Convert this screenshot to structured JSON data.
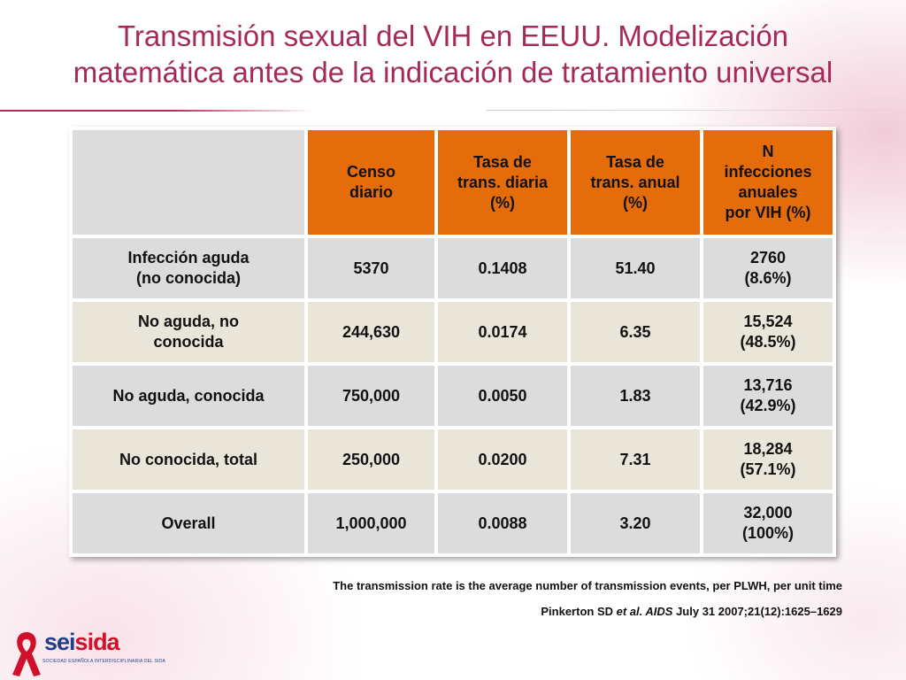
{
  "title": {
    "line1": "Transmisión sexual del VIH en EEUU. Modelización",
    "line2": "matemática antes de la indicación de tratamiento universal"
  },
  "table": {
    "headers": [
      "",
      [
        "Censo",
        "diario"
      ],
      [
        "Tasa de",
        "trans. diaria",
        "(%)"
      ],
      [
        "Tasa de",
        "trans. anual",
        "(%)"
      ],
      [
        "N",
        "infecciones",
        "anuales",
        "por VIH (%)"
      ]
    ],
    "rows": [
      {
        "label": [
          "Infección aguda",
          "(no conocida)"
        ],
        "censo": "5370",
        "diaria": "0.1408",
        "anual": "51.40",
        "n": [
          "2760",
          "(8.6%)"
        ]
      },
      {
        "label": [
          "No aguda, no",
          "conocida"
        ],
        "censo": "244,630",
        "diaria": "0.0174",
        "anual": "6.35",
        "n": [
          "15,524",
          "(48.5%)"
        ]
      },
      {
        "label": [
          "No aguda, conocida"
        ],
        "censo": "750,000",
        "diaria": "0.0050",
        "anual": "1.83",
        "n": [
          "13,716",
          "(42.9%)"
        ]
      },
      {
        "label": [
          "No conocida, total"
        ],
        "censo": "250,000",
        "diaria": "0.0200",
        "anual": "7.31",
        "n": [
          "18,284",
          "(57.1%)"
        ]
      },
      {
        "label": [
          "Overall"
        ],
        "censo": "1,000,000",
        "diaria": "0.0088",
        "anual": "3.20",
        "n": [
          "32,000",
          "(100%)"
        ]
      }
    ]
  },
  "footnote": "The transmission rate is the average number of transmission events, per PLWH, per unit time",
  "citation": {
    "author": "Pinkerton SD ",
    "etal": "et al.",
    "journal": " AIDS",
    "rest": "  July 31 2007;21(12):1625–1629"
  },
  "logo": {
    "part1": "sei",
    "part2": "sida",
    "subtitle": "SOCIEDAD ESPAÑOLA INTERDISCIPLINARIA DEL SIDA",
    "ribbon_icon": "red-ribbon-icon"
  },
  "colors": {
    "title": "#a52a5a",
    "header_bg": "#e46c0a",
    "row_gray": "#dcdcdc",
    "row_beige": "#e9e6d9"
  }
}
